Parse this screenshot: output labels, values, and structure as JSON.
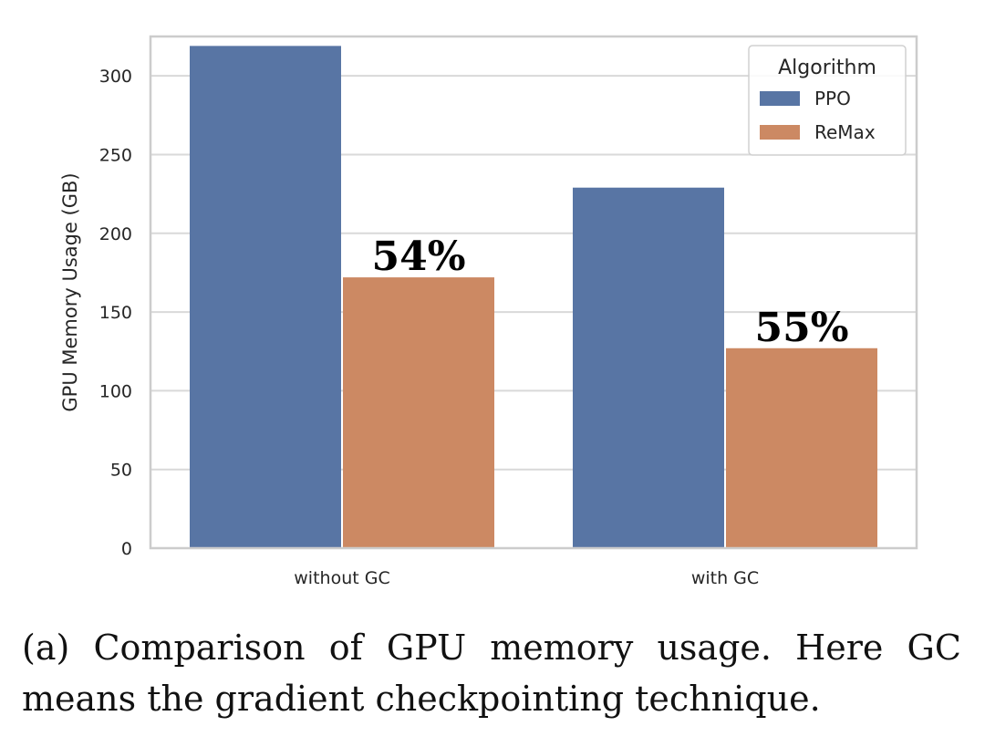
{
  "chart_data": {
    "type": "bar",
    "categories": [
      "without GC",
      "with GC"
    ],
    "series": [
      {
        "name": "PPO",
        "values": [
          319,
          229
        ],
        "color": "#5875a4"
      },
      {
        "name": "ReMax",
        "values": [
          172,
          127
        ],
        "color": "#cc8963"
      }
    ],
    "ylabel": "GPU Memory Usage (GB)",
    "xlabel": "",
    "ylim": [
      0,
      325
    ],
    "yticks": [
      0,
      50,
      100,
      150,
      200,
      250,
      300
    ],
    "grid": true,
    "legend": {
      "title": "Algorithm",
      "position": "top-right"
    },
    "annotations": [
      {
        "text": "54%",
        "category": "without GC",
        "series": "ReMax"
      },
      {
        "text": "55%",
        "category": "with GC",
        "series": "ReMax"
      }
    ]
  },
  "caption": "(a) Comparison of GPU memory usage.  Here GC means the gradient checkpointing technique."
}
